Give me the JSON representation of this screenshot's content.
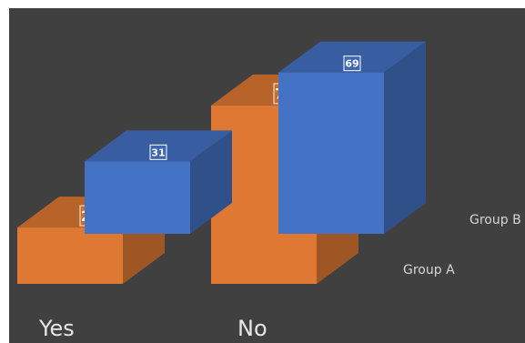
{
  "chart_data": {
    "type": "bar",
    "style": "3d-column",
    "categories": [
      "Yes",
      "No"
    ],
    "series": [
      {
        "name": "Group A",
        "values": [
          31,
          69
        ],
        "color": "#4472C4"
      },
      {
        "name": "Group B",
        "values": [
          24,
          76
        ],
        "color": "#ED7D31"
      }
    ],
    "background": "#404040",
    "grid": false,
    "legend": "series labels on depth axis"
  }
}
